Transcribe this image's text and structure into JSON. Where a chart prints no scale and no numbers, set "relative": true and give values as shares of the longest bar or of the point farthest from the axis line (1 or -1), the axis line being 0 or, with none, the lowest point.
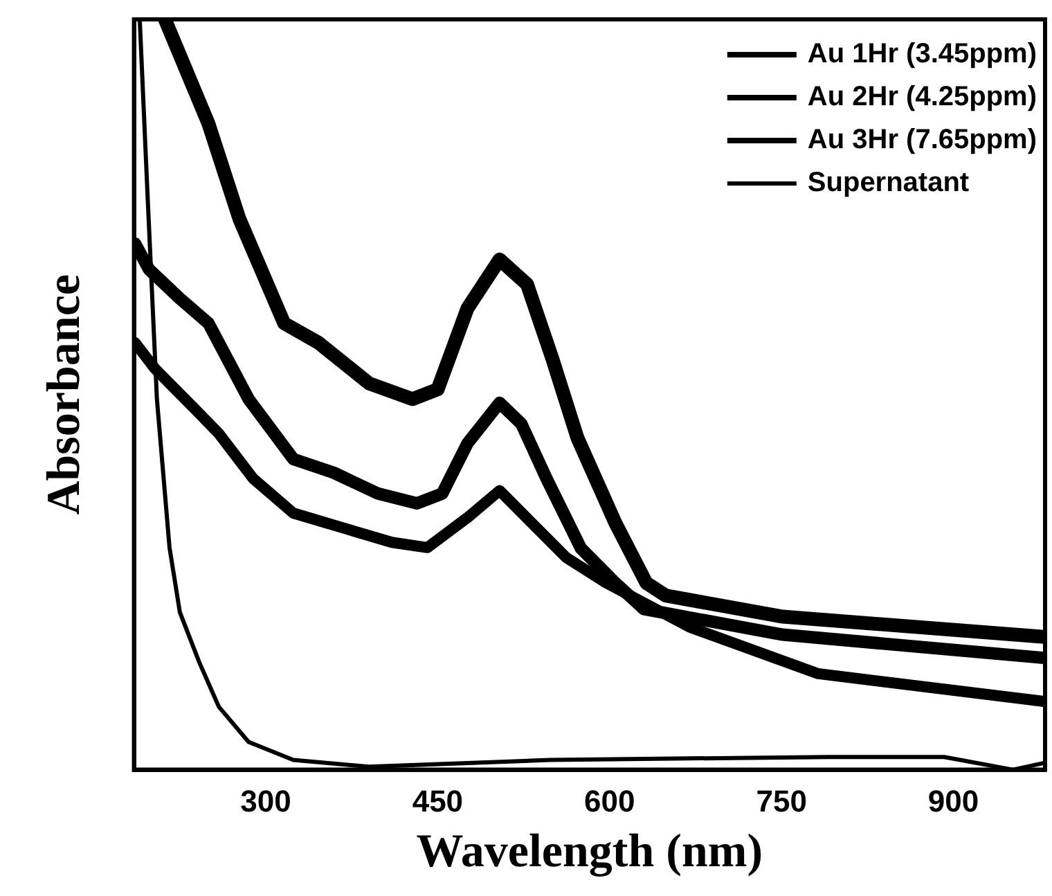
{
  "chart_data": {
    "type": "line",
    "xlabel": "Wavelength (nm)",
    "ylabel": "Absorbance",
    "relative": true,
    "xlim": [
      185,
      980
    ],
    "xticks": [
      300,
      450,
      600,
      750,
      900
    ],
    "legend": "top right",
    "grid": false,
    "series": [
      {
        "name": "Au 1Hr (3.45ppm)",
        "color": "#000000",
        "x": [
          186,
          203,
          238,
          259,
          289,
          324,
          368,
          410,
          441,
          476,
          504,
          532,
          562,
          597,
          670,
          782,
          979
        ],
        "values": [
          0.569,
          0.535,
          0.481,
          0.448,
          0.388,
          0.342,
          0.322,
          0.303,
          0.296,
          0.336,
          0.372,
          0.329,
          0.283,
          0.249,
          0.19,
          0.128,
          0.091
        ]
      },
      {
        "name": "Au 2Hr (4.25ppm)",
        "color": "#000000",
        "x": [
          186,
          198,
          225,
          250,
          285,
          324,
          359,
          398,
          432,
          454,
          476,
          504,
          523,
          545,
          575,
          605,
          630,
          751,
          979
        ],
        "values": [
          0.701,
          0.667,
          0.628,
          0.595,
          0.494,
          0.414,
          0.396,
          0.368,
          0.355,
          0.368,
          0.435,
          0.489,
          0.461,
          0.388,
          0.295,
          0.249,
          0.214,
          0.18,
          0.149
        ]
      },
      {
        "name": "Au 3Hr (7.65ppm)",
        "color": "#000000",
        "x": [
          212,
          250,
          277,
          316,
          346,
          390,
          428,
          450,
          476,
          504,
          528,
          550,
          572,
          605,
          632,
          649,
          751,
          979
        ],
        "values": [
          1.0,
          0.861,
          0.734,
          0.595,
          0.569,
          0.515,
          0.494,
          0.507,
          0.615,
          0.68,
          0.647,
          0.548,
          0.442,
          0.329,
          0.249,
          0.232,
          0.204,
          0.177
        ]
      },
      {
        "name": "Supernatant",
        "color": "#000000",
        "type": "line",
        "x": [
          190,
          197,
          205,
          216,
          225,
          242,
          259,
          285,
          324,
          390,
          548,
          791,
          892,
          952,
          979
        ],
        "values": [
          1.0,
          0.76,
          0.494,
          0.296,
          0.21,
          0.143,
          0.084,
          0.037,
          0.013,
          0.004,
          0.013,
          0.017,
          0.017,
          0,
          0.009
        ]
      }
    ]
  }
}
